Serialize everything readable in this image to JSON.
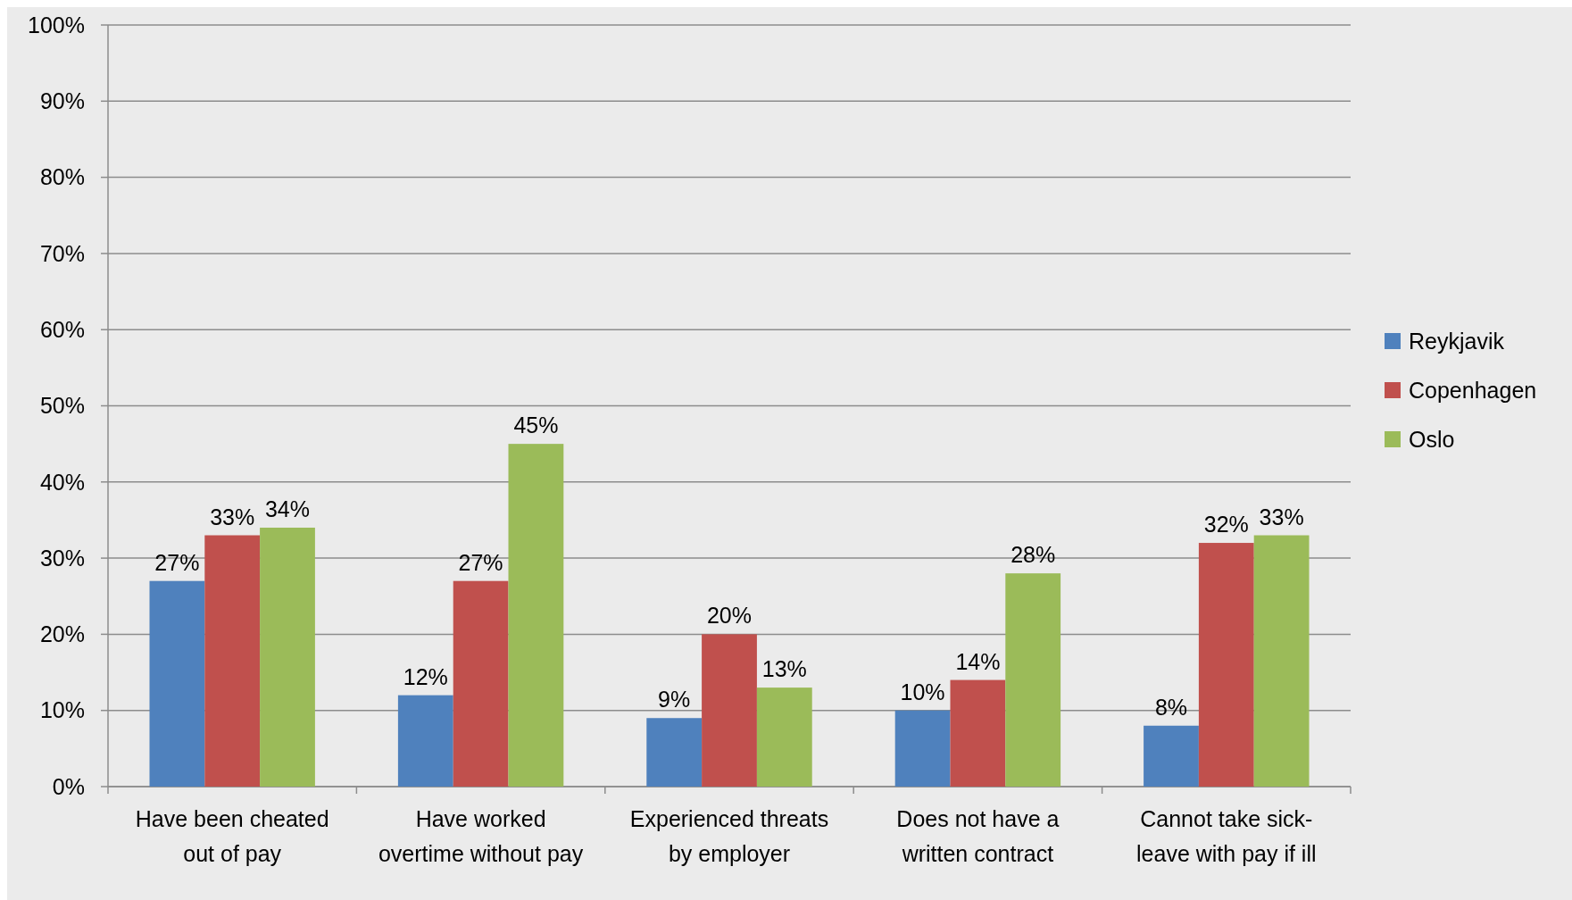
{
  "chart_data": {
    "type": "bar",
    "categories": [
      "Have been cheated out of pay",
      "Have worked overtime without pay",
      "Experienced threats by employer",
      "Does not have a written contract",
      "Cannot take sick-leave with pay if ill"
    ],
    "series": [
      {
        "name": "Reykjavik",
        "color": "#4f81bd",
        "values": [
          27,
          12,
          9,
          10,
          8
        ],
        "value_labels": [
          "27%",
          "12%",
          "9%",
          "10%",
          "8%"
        ]
      },
      {
        "name": "Copenhagen",
        "color": "#c0504d",
        "values": [
          33,
          27,
          20,
          14,
          32
        ],
        "value_labels": [
          "33%",
          "27%",
          "20%",
          "14%",
          "32%"
        ]
      },
      {
        "name": "Oslo",
        "color": "#9bbb59",
        "values": [
          34,
          45,
          13,
          28,
          33
        ],
        "value_labels": [
          "34%",
          "45%",
          "13%",
          "28%",
          "33%"
        ]
      }
    ],
    "ylim": [
      0,
      100
    ],
    "yticks": [
      {
        "value": 0,
        "label": "0%"
      },
      {
        "value": 10,
        "label": "10%"
      },
      {
        "value": 20,
        "label": "20%"
      },
      {
        "value": 30,
        "label": "30%"
      },
      {
        "value": 40,
        "label": "40%"
      },
      {
        "value": 50,
        "label": "50%"
      },
      {
        "value": 60,
        "label": "60%"
      },
      {
        "value": 70,
        "label": "70%"
      },
      {
        "value": 80,
        "label": "80%"
      },
      {
        "value": 90,
        "label": "90%"
      },
      {
        "value": 100,
        "label": "100%"
      }
    ],
    "grid": "y",
    "legend": "right"
  }
}
